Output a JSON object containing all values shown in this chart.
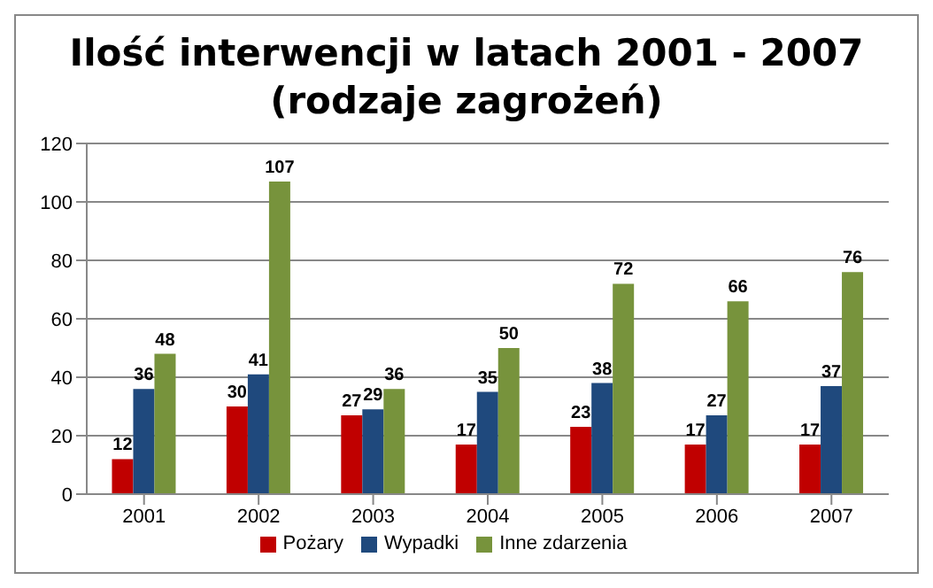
{
  "chart_data": {
    "type": "bar",
    "title": "Ilość interwencji w latach 2001 - 2007\n(rodzaje zagrożeń)",
    "categories": [
      "2001",
      "2002",
      "2003",
      "2004",
      "2005",
      "2006",
      "2007"
    ],
    "series": [
      {
        "name": "Pożary",
        "color": "#c00000",
        "values": [
          12,
          30,
          27,
          17,
          23,
          17,
          17
        ]
      },
      {
        "name": "Wypadki",
        "color": "#1f497d",
        "values": [
          36,
          41,
          29,
          35,
          38,
          27,
          37
        ]
      },
      {
        "name": "Inne zdarzenia",
        "color": "#77933c",
        "values": [
          48,
          107,
          36,
          50,
          72,
          66,
          76
        ]
      }
    ],
    "ylim": [
      0,
      120
    ],
    "yticks": [
      0,
      20,
      40,
      60,
      80,
      100,
      120
    ],
    "grid": "y",
    "legend": "bottom",
    "data_labels": true
  }
}
